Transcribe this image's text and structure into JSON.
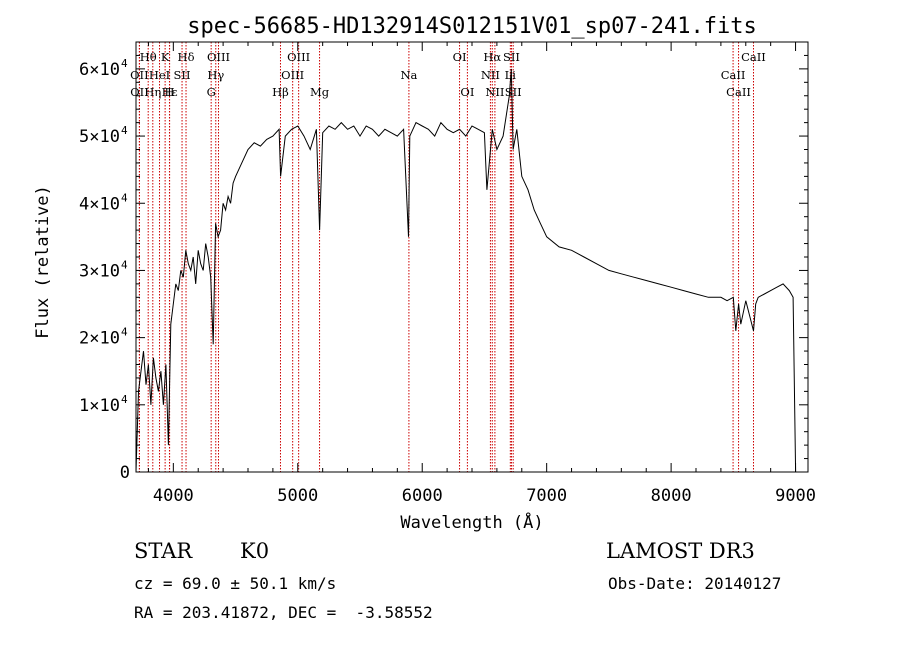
{
  "chart_data": {
    "type": "line",
    "title": "spec-56685-HD132914S012151V01_sp07-241.fits",
    "xlabel": "Wavelength (Å)",
    "ylabel": "Flux (relative)",
    "xlim": [
      3700,
      9100
    ],
    "ylim": [
      0,
      64000
    ],
    "x_ticks": [
      4000,
      5000,
      6000,
      7000,
      8000,
      9000
    ],
    "x_tick_labels": [
      "4000",
      "5000",
      "6000",
      "7000",
      "8000",
      "9000"
    ],
    "y_ticks": [
      0,
      10000,
      20000,
      30000,
      40000,
      50000,
      60000
    ],
    "y_tick_labels": [
      {
        "mantissa": "0",
        "exp": ""
      },
      {
        "mantissa": "1×10",
        "exp": "4"
      },
      {
        "mantissa": "2×10",
        "exp": "4"
      },
      {
        "mantissa": "3×10",
        "exp": "4"
      },
      {
        "mantissa": "4×10",
        "exp": "4"
      },
      {
        "mantissa": "5×10",
        "exp": "4"
      },
      {
        "mantissa": "6×10",
        "exp": "4"
      }
    ],
    "grid": false,
    "line_color": "#000000",
    "marker_color": "#cc0000",
    "series": [
      {
        "x": [
          3700,
          3720,
          3740,
          3760,
          3780,
          3800,
          3820,
          3840,
          3860,
          3880,
          3900,
          3920,
          3940,
          3960,
          3980,
          4000,
          4020,
          4040,
          4060,
          4080,
          4100,
          4120,
          4140,
          4160,
          4180,
          4200,
          4220,
          4240,
          4260,
          4280,
          4300,
          4320,
          4340,
          4360,
          4380,
          4400,
          4420,
          4440,
          4460,
          4480,
          4500,
          4550,
          4600,
          4650,
          4700,
          4750,
          4800,
          4850,
          4862,
          4900,
          4950,
          5000,
          5050,
          5100,
          5150,
          5175,
          5200,
          5250,
          5300,
          5350,
          5400,
          5450,
          5500,
          5550,
          5600,
          5650,
          5700,
          5750,
          5800,
          5850,
          5890,
          5900,
          5950,
          6000,
          6050,
          6100,
          6150,
          6200,
          6250,
          6300,
          6350,
          6400,
          6450,
          6500,
          6520,
          6563,
          6600,
          6650,
          6700,
          6716,
          6730,
          6760,
          6800,
          6850,
          6900,
          6950,
          7000,
          7100,
          7200,
          7300,
          7400,
          7500,
          7600,
          7700,
          7800,
          7900,
          8000,
          8100,
          8200,
          8300,
          8400,
          8450,
          8500,
          8520,
          8542,
          8560,
          8600,
          8662,
          8680,
          8700,
          8750,
          8800,
          8850,
          8900,
          8950,
          8980,
          9000
        ],
        "y": [
          0,
          12000,
          15000,
          18000,
          13000,
          16000,
          10000,
          17000,
          14000,
          12000,
          15000,
          10000,
          16000,
          4000,
          22000,
          25000,
          28000,
          27000,
          30000,
          29000,
          33000,
          31000,
          30000,
          32000,
          28000,
          33000,
          31000,
          30000,
          34000,
          32000,
          29000,
          19000,
          37000,
          35000,
          36000,
          40000,
          39000,
          41000,
          40000,
          43000,
          44000,
          46000,
          48000,
          49000,
          48500,
          49500,
          50000,
          51000,
          44000,
          50000,
          51000,
          51500,
          50000,
          48000,
          51000,
          36000,
          50500,
          51500,
          51000,
          52000,
          51000,
          51500,
          50000,
          51500,
          51000,
          50000,
          51000,
          50500,
          50000,
          51000,
          35000,
          50000,
          52000,
          51500,
          51000,
          50000,
          52000,
          51000,
          50500,
          51000,
          50000,
          51500,
          51000,
          50500,
          42000,
          51000,
          48000,
          50000,
          56000,
          60000,
          48000,
          51000,
          44000,
          42000,
          39000,
          37000,
          35000,
          33500,
          33000,
          32000,
          31000,
          30000,
          29500,
          29000,
          28500,
          28000,
          27500,
          27000,
          26500,
          26000,
          26000,
          25500,
          26000,
          21000,
          25000,
          22000,
          25500,
          21000,
          25000,
          26000,
          26500,
          27000,
          27500,
          28000,
          27000,
          26000,
          0
        ]
      }
    ],
    "lines": [
      {
        "label": "Hθ",
        "x": 3798,
        "row": 0
      },
      {
        "label": "OII",
        "x": 3727,
        "row": 1
      },
      {
        "label": "OII",
        "x": 3728,
        "row": 2
      },
      {
        "label": "K",
        "x": 3934,
        "row": 0
      },
      {
        "label": "HeI",
        "x": 3889,
        "row": 1
      },
      {
        "label": "Hε",
        "x": 3970,
        "row": 2
      },
      {
        "label": "Hδ",
        "x": 4102,
        "row": 0
      },
      {
        "label": "SII",
        "x": 4070,
        "row": 1
      },
      {
        "label": "Hη",
        "x": 3835,
        "row": 2
      },
      {
        "label": "H",
        "x": 3969,
        "row": 2
      },
      {
        "label": "OIII",
        "x": 4363,
        "row": 0
      },
      {
        "label": "Hγ",
        "x": 4341,
        "row": 1
      },
      {
        "label": "G",
        "x": 4304,
        "row": 2
      },
      {
        "label": "OIII",
        "x": 5007,
        "row": 0
      },
      {
        "label": "OIII",
        "x": 4959,
        "row": 1
      },
      {
        "label": "Hβ",
        "x": 4861,
        "row": 2
      },
      {
        "label": "Mg",
        "x": 5175,
        "row": 2
      },
      {
        "label": "Na",
        "x": 5893,
        "row": 1
      },
      {
        "label": "OI",
        "x": 6300,
        "row": 0
      },
      {
        "label": "OI",
        "x": 6363,
        "row": 2
      },
      {
        "label": "Hα",
        "x": 6563,
        "row": 0
      },
      {
        "label": "NII",
        "x": 6548,
        "row": 1
      },
      {
        "label": "NII",
        "x": 6584,
        "row": 2
      },
      {
        "label": "SII",
        "x": 6717,
        "row": 0
      },
      {
        "label": "Li",
        "x": 6708,
        "row": 1
      },
      {
        "label": "SII",
        "x": 6731,
        "row": 2
      },
      {
        "label": "CaII",
        "x": 8662,
        "row": 0
      },
      {
        "label": "CaII",
        "x": 8498,
        "row": 1
      },
      {
        "label": "CaII",
        "x": 8542,
        "row": 2
      }
    ]
  },
  "info": {
    "object_class": "STAR",
    "subclass": "K0",
    "survey": "LAMOST DR3",
    "cz": "cz = 69.0 ± 50.1 km/s",
    "obs_date": "Obs-Date: 20140127",
    "coords": "RA = 203.41872, DEC =  -3.58552"
  }
}
